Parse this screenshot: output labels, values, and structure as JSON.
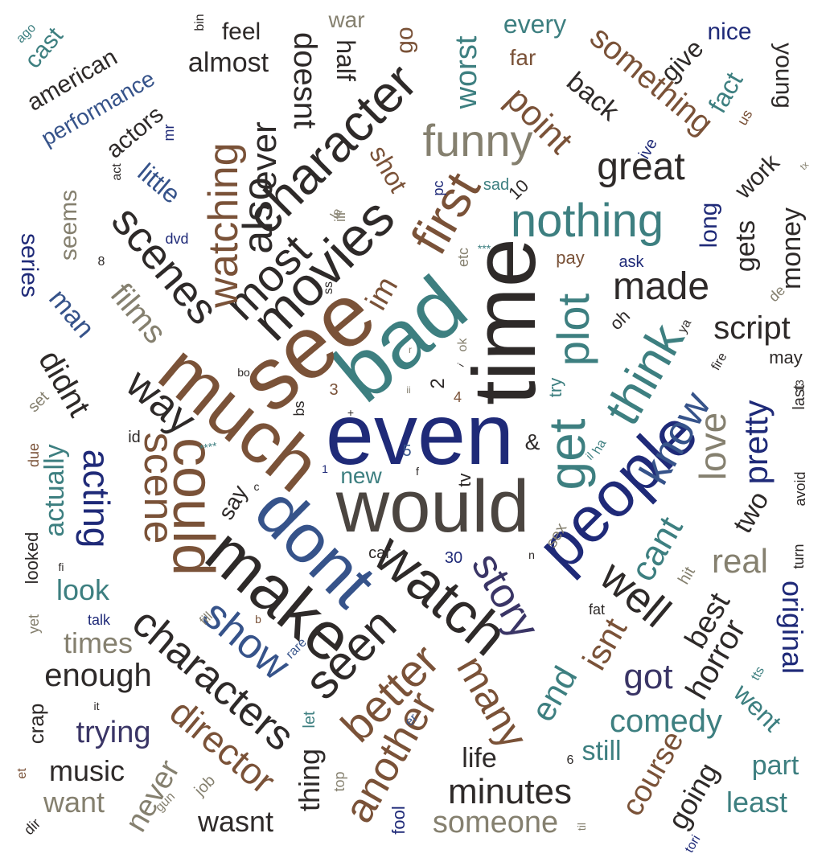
{
  "palette": {
    "navy": "#1f2a78",
    "blue": "#36538a",
    "teal": "#3d7f80",
    "brown": "#7a5238",
    "dark": "#2e2a29",
    "gray": "#85806f",
    "purple": "#3a3566"
  },
  "words": [
    {
      "text": "even",
      "color": "#1f2a78"
    },
    {
      "text": "would",
      "color": "#4b4540"
    },
    {
      "text": "time",
      "color": "#2e2a29"
    },
    {
      "text": "bad",
      "color": "#3d7f80"
    },
    {
      "text": "see",
      "color": "#7a5238"
    },
    {
      "text": "much",
      "color": "#7a5238"
    },
    {
      "text": "dont",
      "color": "#36538a"
    },
    {
      "text": "make",
      "color": "#2e2a29"
    },
    {
      "text": "people",
      "color": "#1f2a78"
    },
    {
      "text": "get",
      "color": "#3d7f80"
    },
    {
      "text": "watch",
      "color": "#2e2a29"
    },
    {
      "text": "could",
      "color": "#7a5238"
    },
    {
      "text": "movies",
      "color": "#2e2a29"
    },
    {
      "text": "character",
      "color": "#2e2a29"
    },
    {
      "text": "nothing",
      "color": "#3d7f80"
    },
    {
      "text": "plot",
      "color": "#3d7f80"
    },
    {
      "text": "first",
      "color": "#7a5238"
    },
    {
      "text": "think",
      "color": "#3d7f80"
    },
    {
      "text": "also",
      "color": "#2e2a29"
    },
    {
      "text": "most",
      "color": "#2e2a29"
    },
    {
      "text": "funny",
      "color": "#85806f"
    },
    {
      "text": "seen",
      "color": "#2e2a29"
    },
    {
      "text": "better",
      "color": "#7a5238"
    },
    {
      "text": "show",
      "color": "#36538a"
    },
    {
      "text": "story",
      "color": "#3a3566"
    },
    {
      "text": "characters",
      "color": "#2e2a29"
    },
    {
      "text": "know",
      "color": "#36538a"
    },
    {
      "text": "scenes",
      "color": "#2e2a29"
    },
    {
      "text": "watching",
      "color": "#7a5238"
    },
    {
      "text": "scene",
      "color": "#7a5238"
    },
    {
      "text": "way",
      "color": "#2e2a29"
    },
    {
      "text": "well",
      "color": "#2e2a29"
    },
    {
      "text": "great",
      "color": "#2e2a29"
    },
    {
      "text": "made",
      "color": "#2e2a29"
    },
    {
      "text": "many",
      "color": "#7a5238"
    },
    {
      "text": "another",
      "color": "#7a5238"
    },
    {
      "text": "director",
      "color": "#7a5238"
    },
    {
      "text": "ever",
      "color": "#2e2a29"
    },
    {
      "text": "doesnt",
      "color": "#2e2a29"
    },
    {
      "text": "point",
      "color": "#7a5238"
    },
    {
      "text": "something",
      "color": "#7a5238"
    },
    {
      "text": "worst",
      "color": "#3d7f80"
    },
    {
      "text": "love",
      "color": "#85806f"
    },
    {
      "text": "pretty",
      "color": "#1f2a78"
    },
    {
      "text": "cant",
      "color": "#3d7f80"
    },
    {
      "text": "real",
      "color": "#85806f"
    },
    {
      "text": "isnt",
      "color": "#7a5238"
    },
    {
      "text": "end",
      "color": "#3d7f80"
    },
    {
      "text": "got",
      "color": "#3a3566"
    },
    {
      "text": "acting",
      "color": "#1f2a78"
    },
    {
      "text": "films",
      "color": "#85806f"
    },
    {
      "text": "didnt",
      "color": "#2e2a29"
    },
    {
      "text": "im",
      "color": "#7a5238"
    },
    {
      "text": "enough",
      "color": "#2e2a29"
    },
    {
      "text": "minutes",
      "color": "#2e2a29"
    },
    {
      "text": "comedy",
      "color": "#3d7f80"
    },
    {
      "text": "script",
      "color": "#2e2a29"
    },
    {
      "text": "horror",
      "color": "#2e2a29"
    },
    {
      "text": "best",
      "color": "#2e2a29"
    },
    {
      "text": "original",
      "color": "#1f2a78"
    },
    {
      "text": "course",
      "color": "#7a5238"
    },
    {
      "text": "going",
      "color": "#2e2a29"
    },
    {
      "text": "least",
      "color": "#3d7f80"
    },
    {
      "text": "someone",
      "color": "#85806f"
    },
    {
      "text": "wasnt",
      "color": "#2e2a29"
    },
    {
      "text": "never",
      "color": "#85806f"
    },
    {
      "text": "thing",
      "color": "#2e2a29"
    },
    {
      "text": "look",
      "color": "#3d7f80"
    },
    {
      "text": "times",
      "color": "#85806f"
    },
    {
      "text": "trying",
      "color": "#3a3566"
    },
    {
      "text": "music",
      "color": "#2e2a29"
    },
    {
      "text": "want",
      "color": "#85806f"
    },
    {
      "text": "life",
      "color": "#2e2a29"
    },
    {
      "text": "still",
      "color": "#3d7f80"
    },
    {
      "text": "part",
      "color": "#3d7f80"
    },
    {
      "text": "went",
      "color": "#3d7f80"
    },
    {
      "text": "two",
      "color": "#2e2a29"
    },
    {
      "text": "gets",
      "color": "#2e2a29"
    },
    {
      "text": "money",
      "color": "#2e2a29"
    },
    {
      "text": "long",
      "color": "#1f2a78"
    },
    {
      "text": "work",
      "color": "#2e2a29"
    },
    {
      "text": "fact",
      "color": "#3d7f80"
    },
    {
      "text": "young",
      "color": "#2e2a29"
    },
    {
      "text": "give",
      "color": "#2e2a29"
    },
    {
      "text": "nice",
      "color": "#1f2a78"
    },
    {
      "text": "back",
      "color": "#2e2a29"
    },
    {
      "text": "far",
      "color": "#7a5238"
    },
    {
      "text": "every",
      "color": "#3d7f80"
    },
    {
      "text": "go",
      "color": "#7a5238"
    },
    {
      "text": "half",
      "color": "#2e2a29"
    },
    {
      "text": "feel",
      "color": "#2e2a29"
    },
    {
      "text": "almost",
      "color": "#2e2a29"
    },
    {
      "text": "war",
      "color": "#85806f"
    },
    {
      "text": "american",
      "color": "#2e2a29"
    },
    {
      "text": "performance",
      "color": "#36538a"
    },
    {
      "text": "actors",
      "color": "#2e2a29"
    },
    {
      "text": "cast",
      "color": "#3d7f80"
    },
    {
      "text": "little",
      "color": "#36538a"
    },
    {
      "text": "seems",
      "color": "#85806f"
    },
    {
      "text": "series",
      "color": "#1f2a78"
    },
    {
      "text": "man",
      "color": "#36538a"
    },
    {
      "text": "actually",
      "color": "#3d7f80"
    },
    {
      "text": "say",
      "color": "#2e2a29"
    },
    {
      "text": "new",
      "color": "#3d7f80"
    },
    {
      "text": "shot",
      "color": "#7a5238"
    },
    {
      "text": "pay",
      "color": "#7a5238"
    },
    {
      "text": "ask",
      "color": "#1f2a78"
    },
    {
      "text": "may",
      "color": "#2e2a29"
    },
    {
      "text": "last",
      "color": "#2e2a29"
    },
    {
      "text": "avoid",
      "color": "#2e2a29"
    },
    {
      "text": "turn",
      "color": "#2e2a29"
    },
    {
      "text": "sex",
      "color": "#85806f"
    },
    {
      "text": "car",
      "color": "#2e2a29"
    },
    {
      "text": "tv",
      "color": "#2e2a29"
    },
    {
      "text": "oh",
      "color": "#2e2a29"
    },
    {
      "text": "10",
      "color": "#2e2a29"
    },
    {
      "text": "sad",
      "color": "#3d7f80"
    },
    {
      "text": "id",
      "color": "#2e2a29"
    },
    {
      "text": "dvd",
      "color": "#1f2a78"
    },
    {
      "text": "mr",
      "color": "#1f2a78"
    },
    {
      "text": "act",
      "color": "#2e2a29"
    },
    {
      "text": "ago",
      "color": "#3d7f80"
    },
    {
      "text": "bin",
      "color": "#2e2a29"
    },
    {
      "text": "ive",
      "color": "#1f2a78"
    },
    {
      "text": "us",
      "color": "#7a5238"
    },
    {
      "text": "30",
      "color": "#1f2a78"
    },
    {
      "text": "5",
      "color": "#36538a"
    },
    {
      "text": "2",
      "color": "#2e2a29"
    },
    {
      "text": "4",
      "color": "#7a5238"
    },
    {
      "text": "3",
      "color": "#7a5238"
    },
    {
      "text": "&",
      "color": "#2e2a29"
    },
    {
      "text": "fat",
      "color": "#2e2a29"
    },
    {
      "text": "hit",
      "color": "#85806f"
    },
    {
      "text": "talk",
      "color": "#1f2a78"
    },
    {
      "text": "crap",
      "color": "#2e2a29"
    },
    {
      "text": "yet",
      "color": "#85806f"
    },
    {
      "text": "looked",
      "color": "#2e2a29"
    },
    {
      "text": "due",
      "color": "#7a5238"
    },
    {
      "text": "set",
      "color": "#85806f"
    },
    {
      "text": "job",
      "color": "#85806f"
    },
    {
      "text": "gun",
      "color": "#85806f"
    },
    {
      "text": "top",
      "color": "#85806f"
    },
    {
      "text": "fool",
      "color": "#1f2a78"
    },
    {
      "text": "let",
      "color": "#3d7f80"
    },
    {
      "text": "er",
      "color": "#36538a"
    },
    {
      "text": "rare",
      "color": "#36538a"
    },
    {
      "text": "ya",
      "color": "#2e2a29"
    },
    {
      "text": "fire",
      "color": "#2e2a29"
    },
    {
      "text": "de",
      "color": "#85806f"
    },
    {
      "text": "ha",
      "color": "#3d7f80"
    },
    {
      "text": "try",
      "color": "#3d7f80"
    },
    {
      "text": "tts",
      "color": "#3d7f80"
    },
    {
      "text": "etc",
      "color": "#85806f"
    },
    {
      "text": "ok",
      "color": "#85806f"
    },
    {
      "text": "ill",
      "color": "#85806f"
    },
    {
      "text": "pc",
      "color": "#1f2a78"
    },
    {
      "text": "tori",
      "color": "#1f2a78"
    },
    {
      "text": "fill",
      "color": "#85806f"
    },
    {
      "text": "it",
      "color": "#2e2a29"
    },
    {
      "text": "dir",
      "color": "#2e2a29"
    },
    {
      "text": "et",
      "color": "#7a5238"
    },
    {
      "text": "****",
      "color": "#3d7f80"
    },
    {
      "text": "***",
      "color": "#3d7f80"
    },
    {
      "text": "bs",
      "color": "#2e2a29"
    },
    {
      "text": "bo",
      "color": "#2e2a29"
    },
    {
      "text": "ss",
      "color": "#2e2a29"
    },
    {
      "text": "la",
      "color": "#85806f"
    },
    {
      "text": "6",
      "color": "#2e2a29"
    },
    {
      "text": "8",
      "color": "#2e2a29"
    },
    {
      "text": "13",
      "color": "#2e2a29"
    },
    {
      "text": "fi",
      "color": "#2e2a29"
    },
    {
      "text": "n",
      "color": "#2e2a29"
    },
    {
      "text": "f",
      "color": "#2e2a29"
    },
    {
      "text": "i",
      "color": "#2e2a29"
    },
    {
      "text": "c",
      "color": "#2e2a29"
    },
    {
      "text": "b",
      "color": "#7a5238"
    },
    {
      "text": "r",
      "color": "#85806f"
    },
    {
      "text": "tx",
      "color": "#85806f"
    },
    {
      "text": "til",
      "color": "#85806f"
    },
    {
      "text": "il",
      "color": "#3d7f80"
    },
    {
      "text": "1",
      "color": "#1f2a78"
    },
    {
      "text": "+",
      "color": "#2e2a29"
    },
    {
      "text": "ii",
      "color": "#85806f"
    }
  ]
}
